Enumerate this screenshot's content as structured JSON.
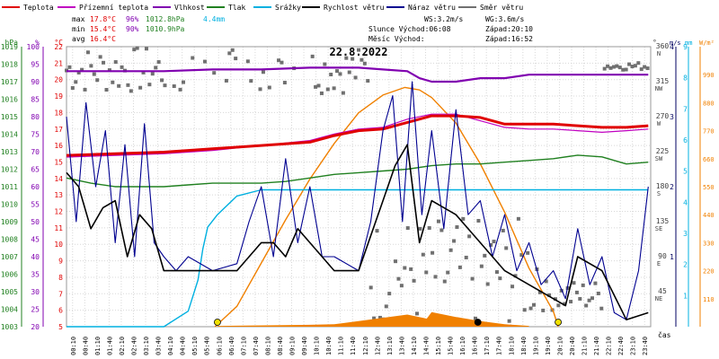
{
  "chart_data": {
    "type": "line",
    "title": "22.8.2022",
    "xlabel": "čas",
    "legend": [
      {
        "name": "Teplota",
        "color": "#e00000"
      },
      {
        "name": "Přízemní teplota",
        "color": "#c000c0"
      },
      {
        "name": "Vlhkost",
        "color": "#8000b0"
      },
      {
        "name": "Tlak",
        "color": "#208020"
      },
      {
        "name": "Srážky",
        "color": "#00b0e0"
      },
      {
        "name": "Rychlost větru",
        "color": "#000000"
      },
      {
        "name": "Náraz větru",
        "color": "#000090"
      },
      {
        "name": "Směr větru",
        "color": "#707070"
      }
    ],
    "stats": [
      {
        "label": "max",
        "temp": "17.8°C",
        "hum": "96%",
        "pres": "1012.8hPa",
        "rain": "4.4mm"
      },
      {
        "label": "min",
        "temp": "15.4°C",
        "hum": "90%",
        "pres": "1010.9hPa",
        "rain": ""
      },
      {
        "label": "avg",
        "temp": "16.4°C",
        "hum": "",
        "pres": "",
        "rain": ""
      }
    ],
    "wind_info": {
      "ws": "WS:3.2m/s",
      "wg": "WG:3.6m/s"
    },
    "sun_info": {
      "sun": "Slunce Východ:06:08",
      "sun_set": "Západ:20:10",
      "moon": "Měsíc  Východ:",
      "moon_set": "Západ:16:52"
    },
    "axes": {
      "hpa": {
        "unit": "hPa",
        "ticks": [
          "1019",
          "1018",
          "1017",
          "1016",
          "1015",
          "1014",
          "1013",
          "1012",
          "1011",
          "1010",
          "1009",
          "1008",
          "1007",
          "1006",
          "1005",
          "1004",
          "1003"
        ],
        "range": [
          1003,
          1019
        ]
      },
      "pct": {
        "unit": "%",
        "ticks": [
          "100",
          "95",
          "90",
          "85",
          "80",
          "75",
          "70",
          "65",
          "60",
          "55",
          "50",
          "45",
          "40",
          "35",
          "30",
          "25",
          "20"
        ],
        "range": [
          20,
          100
        ]
      },
      "temp": {
        "unit": "°C",
        "ticks": [
          "22",
          "21",
          "20",
          "19",
          "18",
          "17",
          "16",
          "15",
          "14",
          "13",
          "12",
          "11",
          "10",
          "9",
          "8",
          "7",
          "6",
          "5"
        ],
        "range": [
          5,
          22
        ]
      },
      "dir": {
        "unit": "°",
        "ticks": [
          "360 N",
          "315 NW",
          "270 W",
          "225 SW",
          "180 S",
          "135 SE",
          "90 E",
          "45 NE"
        ],
        "range": [
          0,
          360
        ]
      },
      "ms": {
        "unit": "m/s",
        "ticks": [
          "4",
          "3",
          "2",
          "1"
        ],
        "range": [
          0,
          4
        ]
      },
      "mm": {
        "unit": "mm",
        "ticks": [
          "9",
          "8",
          "7",
          "6",
          "5",
          "4",
          "3",
          "2",
          "1"
        ],
        "range": [
          0,
          9
        ]
      },
      "wm2": {
        "unit": "W/m²",
        "ticks": [
          "990",
          "880",
          "770",
          "660",
          "550",
          "440",
          "330",
          "220",
          "110"
        ],
        "range": [
          0,
          1100
        ]
      }
    },
    "x_ticks": [
      "00:10",
      "00:40",
      "01:10",
      "01:40",
      "02:10",
      "02:40",
      "03:10",
      "03:40",
      "04:10",
      "04:40",
      "05:10",
      "05:40",
      "06:10",
      "06:40",
      "07:10",
      "07:40",
      "08:10",
      "08:40",
      "09:10",
      "09:40",
      "10:10",
      "10:40",
      "11:10",
      "11:40",
      "12:10",
      "12:40",
      "13:10",
      "13:40",
      "14:10",
      "14:40",
      "15:10",
      "15:40",
      "16:10",
      "16:40",
      "17:10",
      "17:40",
      "18:10",
      "18:40",
      "19:10",
      "19:40",
      "20:10",
      "20:40",
      "21:10",
      "21:40",
      "22:10",
      "22:40",
      "23:10",
      "23:40"
    ],
    "x_range_hours": [
      0,
      24
    ],
    "series": {
      "temperature_c": [
        [
          0,
          15.4
        ],
        [
          2,
          15.5
        ],
        [
          4,
          15.6
        ],
        [
          6,
          15.8
        ],
        [
          8,
          16.0
        ],
        [
          10,
          16.2
        ],
        [
          11,
          16.6
        ],
        [
          12,
          16.9
        ],
        [
          13,
          17.0
        ],
        [
          14,
          17.4
        ],
        [
          15,
          17.8
        ],
        [
          16,
          17.8
        ],
        [
          17,
          17.7
        ],
        [
          18,
          17.3
        ],
        [
          19,
          17.3
        ],
        [
          20,
          17.3
        ],
        [
          21,
          17.2
        ],
        [
          22,
          17.1
        ],
        [
          23,
          17.1
        ],
        [
          23.9,
          17.2
        ]
      ],
      "ground_temperature_c": [
        [
          0,
          15.3
        ],
        [
          2,
          15.4
        ],
        [
          4,
          15.5
        ],
        [
          6,
          15.7
        ],
        [
          8,
          16.0
        ],
        [
          10,
          16.3
        ],
        [
          11,
          16.7
        ],
        [
          12,
          17.0
        ],
        [
          13,
          17.1
        ],
        [
          14,
          17.6
        ],
        [
          15,
          17.9
        ],
        [
          16,
          17.9
        ],
        [
          17,
          17.5
        ],
        [
          18,
          17.1
        ],
        [
          19,
          17.0
        ],
        [
          20,
          17.0
        ],
        [
          21,
          16.9
        ],
        [
          22,
          16.8
        ],
        [
          23,
          16.9
        ],
        [
          23.9,
          17.0
        ]
      ],
      "humidity_pct": [
        [
          0,
          93
        ],
        [
          2,
          93
        ],
        [
          4,
          93
        ],
        [
          6,
          93.5
        ],
        [
          8,
          93.5
        ],
        [
          10,
          94
        ],
        [
          12,
          94
        ],
        [
          13,
          93.5
        ],
        [
          14,
          93
        ],
        [
          14.5,
          91
        ],
        [
          15,
          90
        ],
        [
          16,
          90
        ],
        [
          17,
          91
        ],
        [
          18,
          91
        ],
        [
          19,
          92
        ],
        [
          20,
          92
        ],
        [
          21,
          92
        ],
        [
          22,
          92
        ],
        [
          23,
          92
        ],
        [
          23.9,
          92
        ]
      ],
      "pressure_hpa": [
        [
          0,
          1011.5
        ],
        [
          1,
          1011.2
        ],
        [
          2,
          1011.0
        ],
        [
          3,
          1011.0
        ],
        [
          4,
          1011.0
        ],
        [
          5,
          1011.1
        ],
        [
          6,
          1011.2
        ],
        [
          7,
          1011.2
        ],
        [
          8,
          1011.2
        ],
        [
          9,
          1011.3
        ],
        [
          10,
          1011.5
        ],
        [
          11,
          1011.7
        ],
        [
          12,
          1011.8
        ],
        [
          13,
          1011.9
        ],
        [
          14,
          1012.0
        ],
        [
          15,
          1012.2
        ],
        [
          16,
          1012.3
        ],
        [
          17,
          1012.3
        ],
        [
          18,
          1012.4
        ],
        [
          19,
          1012.5
        ],
        [
          20,
          1012.6
        ],
        [
          21,
          1012.8
        ],
        [
          22,
          1012.7
        ],
        [
          23,
          1012.3
        ],
        [
          23.9,
          1012.4
        ]
      ],
      "rain_mm": [
        [
          0,
          0
        ],
        [
          4,
          0
        ],
        [
          5,
          0.5
        ],
        [
          5.4,
          1.5
        ],
        [
          5.6,
          2.5
        ],
        [
          5.8,
          3.2
        ],
        [
          6.2,
          3.6
        ],
        [
          7,
          4.2
        ],
        [
          8,
          4.4
        ],
        [
          23.9,
          4.4
        ]
      ],
      "wind_speed_ms": [
        [
          0,
          2.2
        ],
        [
          0.5,
          2.0
        ],
        [
          1,
          1.4
        ],
        [
          1.5,
          1.7
        ],
        [
          2,
          1.8
        ],
        [
          2.5,
          1.0
        ],
        [
          3,
          1.6
        ],
        [
          3.5,
          1.4
        ],
        [
          4,
          0.8
        ],
        [
          5,
          0.8
        ],
        [
          6,
          0.8
        ],
        [
          7,
          0.8
        ],
        [
          8,
          1.2
        ],
        [
          8.5,
          1.2
        ],
        [
          9,
          1.0
        ],
        [
          9.5,
          1.4
        ],
        [
          10,
          1.2
        ],
        [
          11,
          0.8
        ],
        [
          12,
          0.8
        ],
        [
          13,
          1.8
        ],
        [
          13.5,
          2.3
        ],
        [
          14,
          2.6
        ],
        [
          14.5,
          1.2
        ],
        [
          15,
          1.8
        ],
        [
          16,
          1.6
        ],
        [
          17,
          1.2
        ],
        [
          18,
          0.8
        ],
        [
          19,
          0.6
        ],
        [
          20,
          0.4
        ],
        [
          20.5,
          0.3
        ],
        [
          21,
          1.0
        ],
        [
          22,
          0.8
        ],
        [
          23,
          0.1
        ],
        [
          23.9,
          0.2
        ]
      ],
      "wind_gust_ms": [
        [
          0,
          3.0
        ],
        [
          0.4,
          1.5
        ],
        [
          0.8,
          3.2
        ],
        [
          1.2,
          2.0
        ],
        [
          1.6,
          2.8
        ],
        [
          2,
          1.2
        ],
        [
          2.4,
          2.6
        ],
        [
          2.8,
          1.0
        ],
        [
          3.2,
          2.9
        ],
        [
          3.6,
          1.2
        ],
        [
          4,
          1.0
        ],
        [
          4.5,
          0.8
        ],
        [
          5,
          1.0
        ],
        [
          6,
          0.8
        ],
        [
          7,
          0.9
        ],
        [
          7.5,
          1.5
        ],
        [
          8,
          2.0
        ],
        [
          8.5,
          1.0
        ],
        [
          9,
          2.4
        ],
        [
          9.5,
          1.2
        ],
        [
          10,
          2.0
        ],
        [
          10.5,
          1.0
        ],
        [
          11,
          1.0
        ],
        [
          12,
          0.8
        ],
        [
          12.5,
          1.5
        ],
        [
          13,
          2.8
        ],
        [
          13.4,
          3.3
        ],
        [
          13.8,
          1.5
        ],
        [
          14.2,
          3.5
        ],
        [
          14.6,
          1.6
        ],
        [
          15,
          2.8
        ],
        [
          15.5,
          1.4
        ],
        [
          16,
          3.1
        ],
        [
          16.5,
          1.6
        ],
        [
          17,
          1.8
        ],
        [
          17.5,
          1.0
        ],
        [
          18,
          1.6
        ],
        [
          18.5,
          0.8
        ],
        [
          19,
          1.2
        ],
        [
          19.5,
          0.6
        ],
        [
          20,
          0.8
        ],
        [
          20.5,
          0.4
        ],
        [
          21,
          1.4
        ],
        [
          21.5,
          0.6
        ],
        [
          22,
          1.0
        ],
        [
          22.5,
          0.2
        ],
        [
          23,
          0.1
        ],
        [
          23.5,
          0.8
        ],
        [
          23.9,
          2.0
        ]
      ],
      "solar_radiation_wm2": [
        [
          6.1,
          0
        ],
        [
          7,
          80
        ],
        [
          8,
          250
        ],
        [
          9,
          420
        ],
        [
          10,
          580
        ],
        [
          11,
          720
        ],
        [
          12,
          840
        ],
        [
          13,
          910
        ],
        [
          13.9,
          940
        ],
        [
          14.5,
          930
        ],
        [
          15,
          900
        ],
        [
          16,
          800
        ],
        [
          17,
          640
        ],
        [
          18,
          450
        ],
        [
          19,
          230
        ],
        [
          20,
          60
        ],
        [
          20.2,
          0
        ]
      ],
      "rain_bars_rel": [
        [
          6.2,
          0.05
        ],
        [
          9,
          0.1
        ],
        [
          10,
          0.12
        ],
        [
          11,
          0.15
        ],
        [
          12,
          0.35
        ],
        [
          13,
          0.55
        ],
        [
          14,
          0.75
        ],
        [
          14.8,
          0.5
        ],
        [
          15,
          0.9
        ],
        [
          16,
          0.6
        ],
        [
          17,
          0.35
        ],
        [
          18,
          0.15
        ],
        [
          19,
          0.05
        ]
      ]
    },
    "markers": [
      {
        "x": 6.2,
        "type": "sunrise"
      },
      {
        "x": 16.9,
        "type": "moonset"
      },
      {
        "x": 20.2,
        "type": "sunset"
      }
    ]
  }
}
